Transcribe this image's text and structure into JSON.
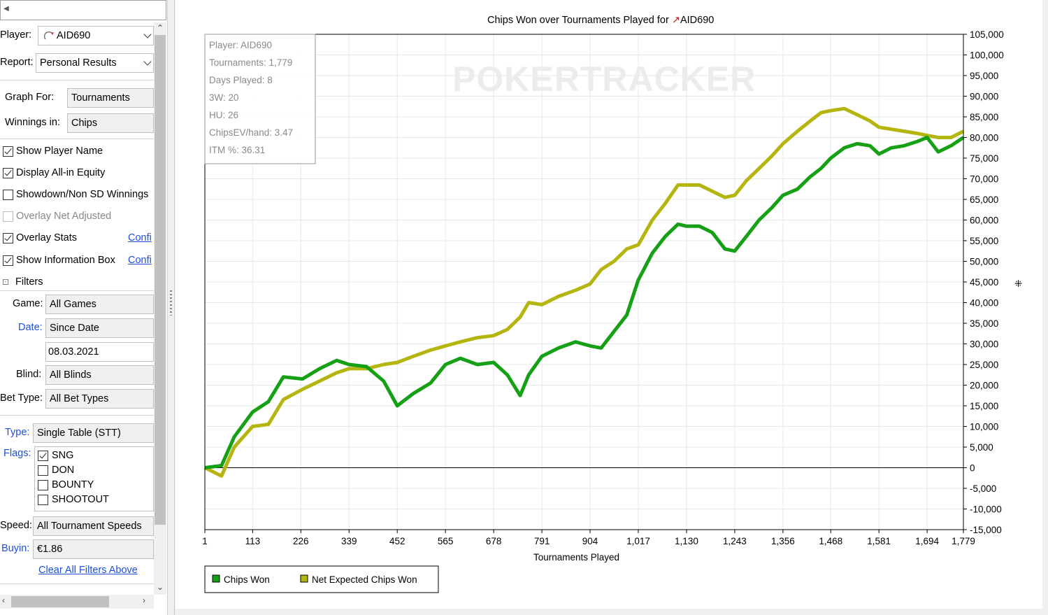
{
  "sidebar": {
    "player_label": "Player:",
    "player_value": "AID690",
    "report_label": "Report:",
    "report_value": "Personal Results",
    "graph_for_label": "Graph For:",
    "graph_for_value": "Tournaments",
    "winnings_in_label": "Winnings in:",
    "winnings_in_value": "Chips",
    "options": [
      {
        "label": "Show Player Name",
        "checked": true,
        "enabled": true
      },
      {
        "label": "Display All-in Equity",
        "checked": true,
        "enabled": true
      },
      {
        "label": "Showdown/Non SD Winnings",
        "checked": false,
        "enabled": true
      },
      {
        "label": "Overlay Net Adjusted",
        "checked": false,
        "enabled": false
      },
      {
        "label": "Overlay Stats",
        "checked": true,
        "enabled": true,
        "link": "Confi"
      },
      {
        "label": "Show Information Box",
        "checked": true,
        "enabled": true,
        "link": "Confi"
      }
    ],
    "filters_label": "Filters",
    "game_label": "Game:",
    "game_value": "All Games",
    "date_label": "Date:",
    "date_value": "Since Date",
    "date_input": "08.03.2021",
    "blind_label": "Blind:",
    "blind_value": "All Blinds",
    "bet_type_label": "Bet Type:",
    "bet_type_value": "All Bet Types",
    "type_label": "Type:",
    "type_value": "Single Table (STT)",
    "flags_label": "Flags:",
    "flags": [
      {
        "label": "SNG",
        "checked": true
      },
      {
        "label": "DON",
        "checked": false
      },
      {
        "label": "BOUNTY",
        "checked": false
      },
      {
        "label": "SHOOTOUT",
        "checked": false
      }
    ],
    "speed_label": "Speed:",
    "speed_value": "All Tournament Speeds",
    "buyin_label": "Buyin:",
    "buyin_value": "€1.86",
    "clear_filters": "Clear All Filters Above"
  },
  "colors": {
    "chips_won": "#15a015",
    "net_expected": "#b5b510",
    "link_blue": "#1f4ed8"
  },
  "info_box": [
    "Player: AID690",
    "Tournaments: 1,779",
    "Days Played: 8",
    "3W: 20",
    "HU: 26",
    "ChipsEV/hand: 3.47",
    "ITM %: 36.31"
  ],
  "watermark": "POKERTRACKER",
  "chart_data": {
    "type": "line",
    "title": "Chips Won over Tournaments Played for AID690",
    "xlabel": "Tournaments Played",
    "ylabel": "",
    "xlim": [
      1,
      1779
    ],
    "ylim": [
      -15000,
      105000
    ],
    "x_ticks": [
      "1",
      "113",
      "226",
      "339",
      "452",
      "565",
      "678",
      "791",
      "904",
      "1,017",
      "1,130",
      "1,243",
      "1,356",
      "1,468",
      "1,581",
      "1,694",
      "1,779"
    ],
    "y_ticks": [
      "105,000",
      "100,000",
      "95,000",
      "90,000",
      "85,000",
      "80,000",
      "75,000",
      "70,000",
      "65,000",
      "60,000",
      "55,000",
      "50,000",
      "45,000",
      "40,000",
      "35,000",
      "30,000",
      "25,000",
      "20,000",
      "15,000",
      "10,000",
      "5,000",
      "0",
      "-5,000",
      "-10,000",
      "-15,000"
    ],
    "legend": [
      "Chips Won",
      "Net Expected Chips Won"
    ],
    "legend_position": "bottom-left",
    "grid": true,
    "x": [
      1,
      40,
      70,
      113,
      150,
      185,
      230,
      270,
      310,
      339,
      380,
      420,
      452,
      490,
      530,
      565,
      600,
      640,
      678,
      710,
      740,
      760,
      791,
      830,
      870,
      904,
      930,
      960,
      990,
      1017,
      1050,
      1080,
      1110,
      1130,
      1160,
      1190,
      1220,
      1243,
      1270,
      1300,
      1330,
      1356,
      1390,
      1420,
      1445,
      1468,
      1500,
      1530,
      1560,
      1581,
      1610,
      1640,
      1670,
      1694,
      1720,
      1750,
      1779
    ],
    "series": [
      {
        "name": "Chips Won",
        "values": [
          0,
          500,
          7500,
          13500,
          16000,
          22000,
          21500,
          24000,
          26000,
          25000,
          24500,
          21000,
          15000,
          18000,
          20500,
          25000,
          26500,
          25000,
          25500,
          22500,
          17500,
          22500,
          27000,
          29000,
          30500,
          29500,
          29000,
          33000,
          37000,
          45500,
          52000,
          56000,
          59000,
          58500,
          58500,
          57000,
          53000,
          52500,
          56000,
          60000,
          63000,
          66000,
          67500,
          70500,
          72500,
          75000,
          77500,
          78500,
          78000,
          76000,
          77500,
          78000,
          79000,
          80000,
          76500,
          78000,
          80000
        ]
      },
      {
        "name": "Net Expected Chips Won",
        "values": [
          0,
          -2000,
          5000,
          10000,
          10500,
          16500,
          19000,
          21000,
          23000,
          24000,
          24000,
          25000,
          25500,
          27000,
          28500,
          29500,
          30500,
          31500,
          32000,
          33500,
          36500,
          40000,
          39500,
          41500,
          43000,
          44500,
          48000,
          50000,
          53000,
          54000,
          60000,
          64000,
          68500,
          68500,
          68500,
          67000,
          65500,
          66000,
          69500,
          72500,
          75500,
          78500,
          81500,
          84000,
          86000,
          86500,
          87000,
          85500,
          84000,
          82500,
          82000,
          81500,
          81000,
          80500,
          80000,
          80000,
          81500
        ]
      }
    ]
  }
}
